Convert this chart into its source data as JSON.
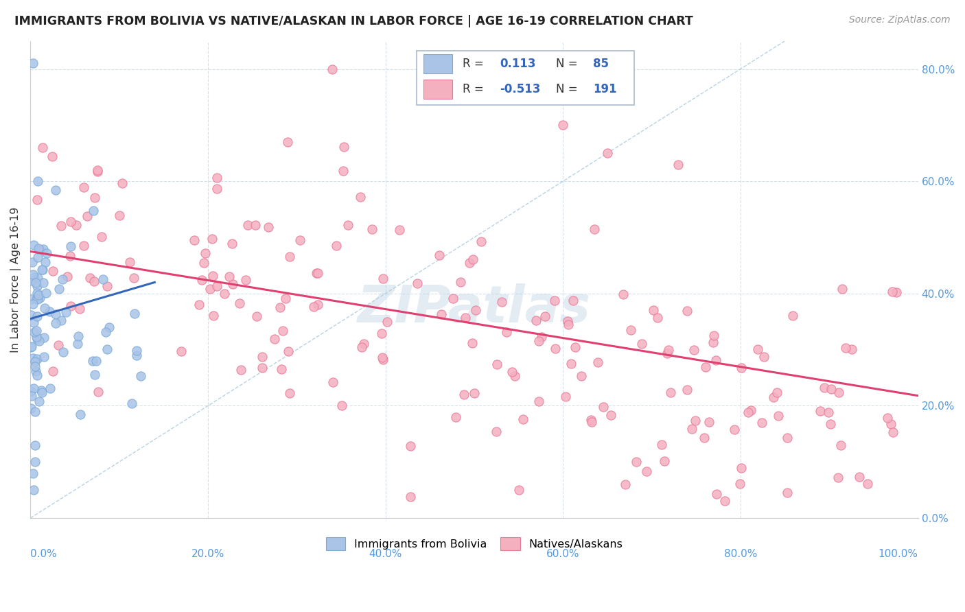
{
  "title": "IMMIGRANTS FROM BOLIVIA VS NATIVE/ALASKAN IN LABOR FORCE | AGE 16-19 CORRELATION CHART",
  "source": "Source: ZipAtlas.com",
  "ylabel": "In Labor Force | Age 16-19",
  "xlim": [
    0.0,
    1.0
  ],
  "ylim": [
    0.0,
    0.85
  ],
  "bolivia_color": "#aac4e8",
  "native_color": "#f5b0c0",
  "bolivia_edge": "#7aaad8",
  "native_edge": "#e87898",
  "trendline_bolivia_color": "#3366bb",
  "trendline_native_color": "#e04070",
  "diagonal_color": "#aaccdd",
  "legend_R_bolivia": "0.113",
  "legend_N_bolivia": "85",
  "legend_R_native": "-0.513",
  "legend_N_native": "191",
  "legend_label_bolivia": "Immigrants from Bolivia",
  "legend_label_native": "Natives/Alaskans",
  "watermark": "ZIPatlas",
  "tick_color": "#5599dd",
  "grid_color": "#c8d8e8"
}
